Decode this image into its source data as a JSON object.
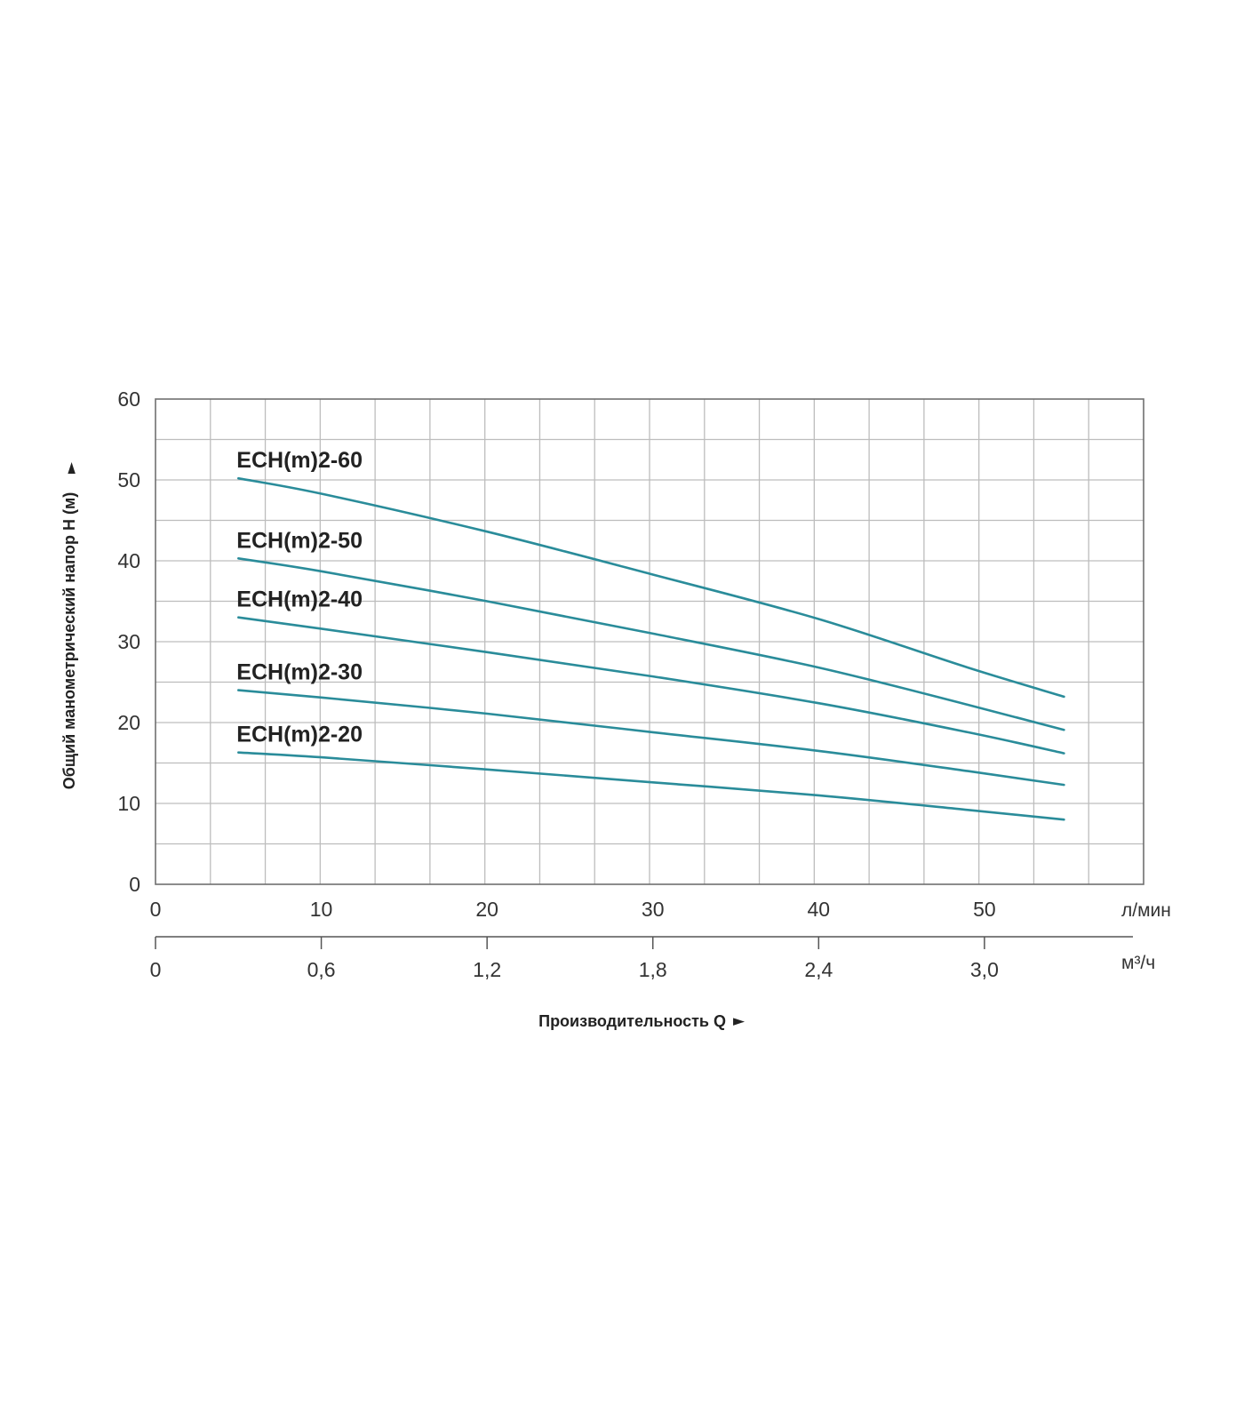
{
  "chart_data": {
    "type": "line",
    "ylabel": "Общий манометрический напор H (м)",
    "xlabel": "Производительность Q",
    "x_unit_primary": "л/мин",
    "x_unit_secondary": "м³/ч",
    "xlim": [
      0,
      59.6
    ],
    "ylim": [
      0,
      60
    ],
    "x_ticks_primary": [
      0,
      10,
      20,
      30,
      40,
      50
    ],
    "x_tick_labels_primary": [
      "0",
      "10",
      "20",
      "30",
      "40",
      "50"
    ],
    "x_ticks_secondary": [
      0,
      0.6,
      1.2,
      1.8,
      2.4,
      3.0
    ],
    "x_tick_labels_secondary": [
      "0",
      "0,6",
      "1,2",
      "1,8",
      "2,4",
      "3,0"
    ],
    "y_ticks": [
      0,
      10,
      20,
      30,
      40,
      50,
      60
    ],
    "y_tick_labels": [
      "0",
      "10",
      "20",
      "30",
      "40",
      "50",
      "60"
    ],
    "grid": true,
    "series_color": "#2a8c9a",
    "series": [
      {
        "name": "ECH(m)2-60",
        "x": [
          5,
          10,
          20,
          30,
          40,
          49,
          54.8
        ],
        "y": [
          50.2,
          48.3,
          43.6,
          38.3,
          32.8,
          26.8,
          23.2
        ]
      },
      {
        "name": "ECH(m)2-50",
        "x": [
          5,
          10,
          20,
          30,
          40,
          49,
          54.8
        ],
        "y": [
          40.3,
          38.7,
          35.0,
          31.0,
          26.8,
          22.2,
          19.1
        ]
      },
      {
        "name": "ECH(m)2-40",
        "x": [
          5,
          10,
          20,
          30,
          40,
          49,
          54.8
        ],
        "y": [
          33.0,
          31.6,
          28.7,
          25.7,
          22.4,
          18.8,
          16.2
        ]
      },
      {
        "name": "ECH(m)2-30",
        "x": [
          5,
          10,
          20,
          30,
          40,
          49,
          54.8
        ],
        "y": [
          24.0,
          23.1,
          21.1,
          18.8,
          16.5,
          14.0,
          12.3
        ]
      },
      {
        "name": "ECH(m)2-20",
        "x": [
          5,
          10,
          20,
          30,
          40,
          49,
          54.8
        ],
        "y": [
          16.3,
          15.7,
          14.2,
          12.6,
          11.0,
          9.2,
          8.0
        ]
      }
    ]
  }
}
